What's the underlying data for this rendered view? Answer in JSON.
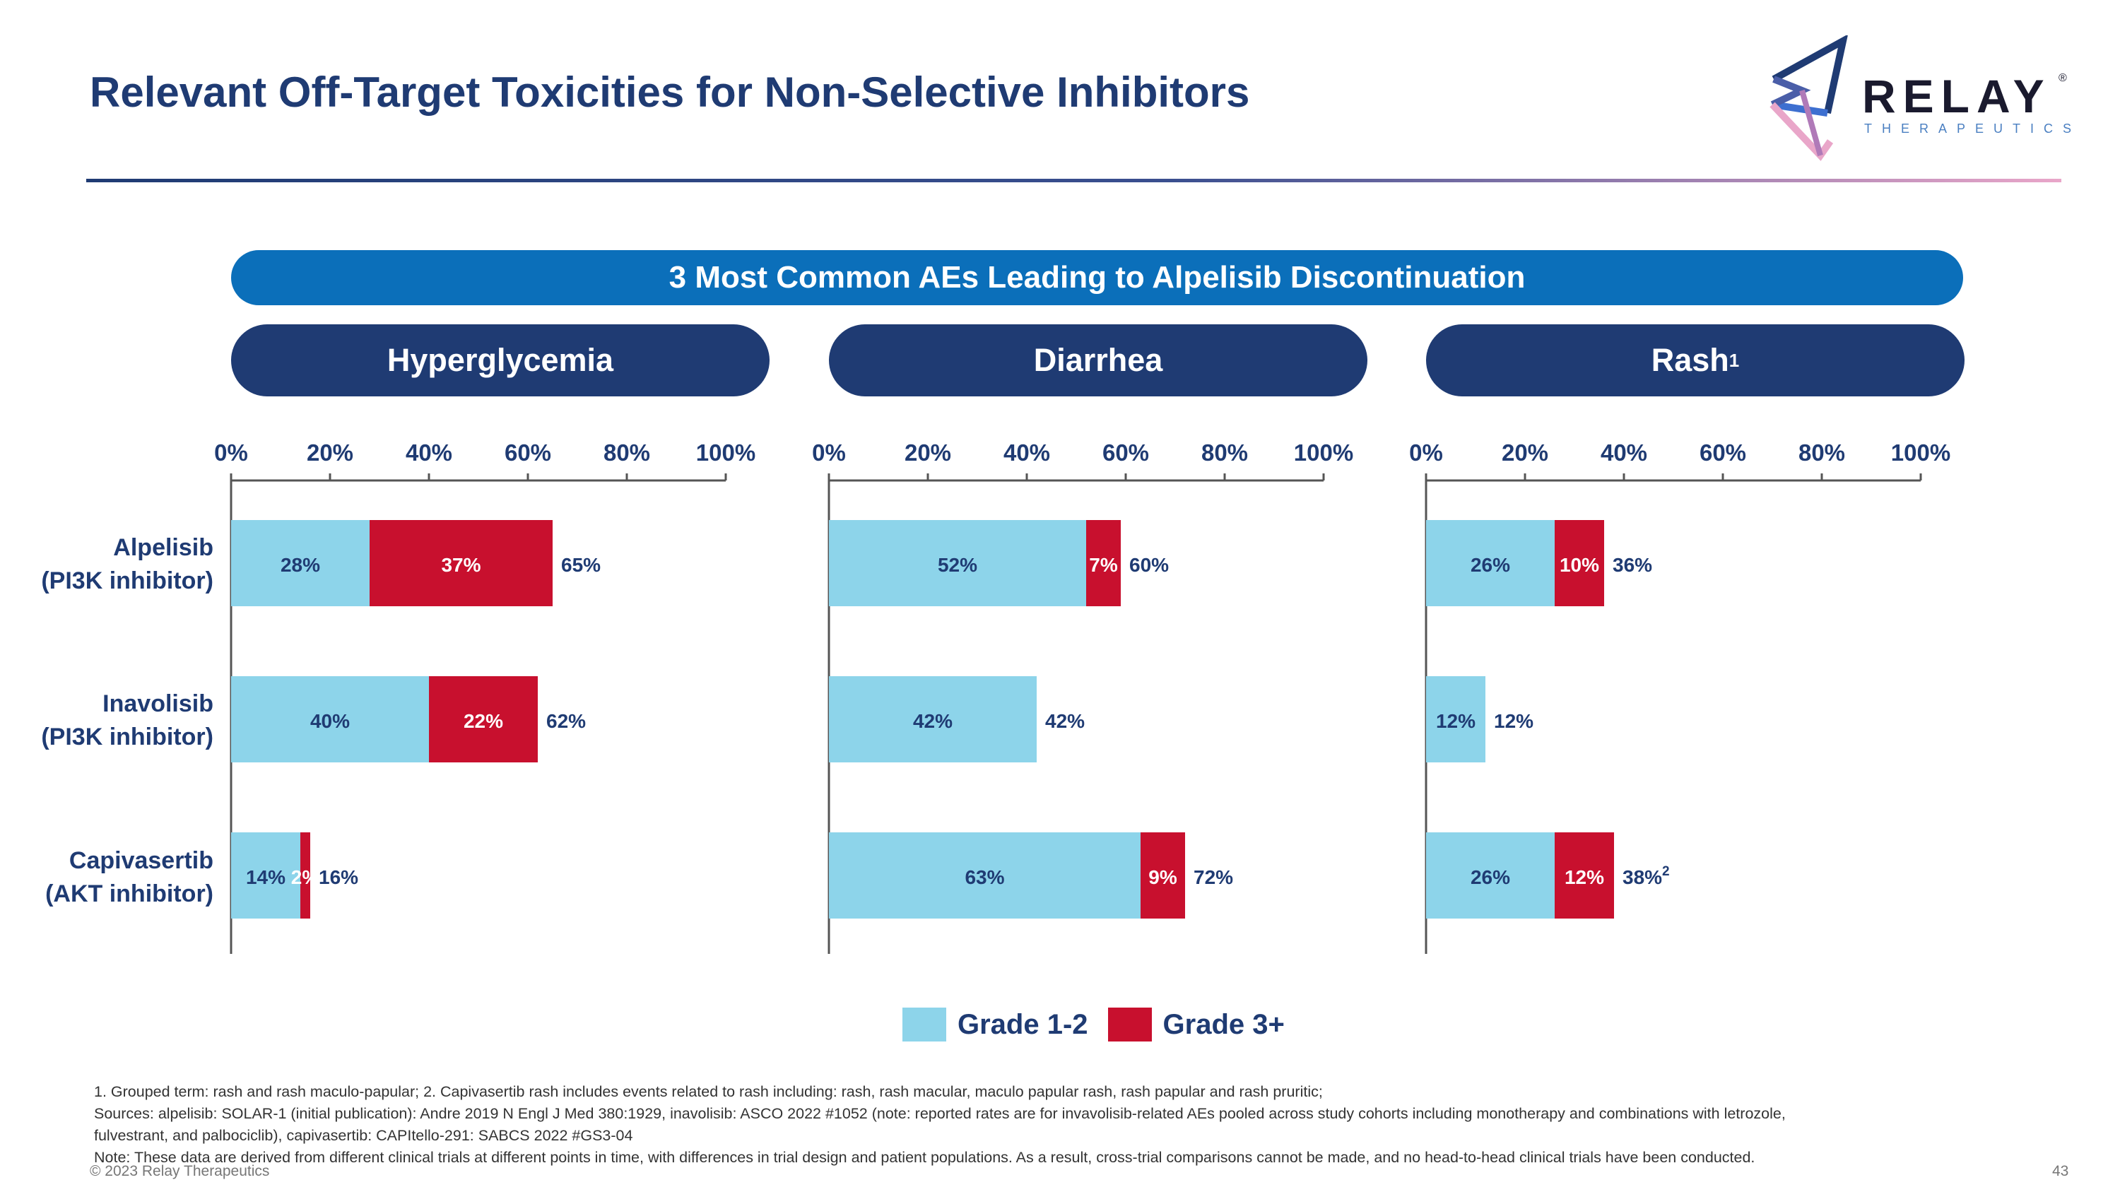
{
  "slide": {
    "title": "Relevant Off-Target Toxicities for Non-Selective Inhibitors",
    "banner": "3 Most Common AEs Leading to Alpelisib Discontinuation",
    "page_number": "43",
    "copyright": "© 2023 Relay Therapeutics"
  },
  "logo": {
    "wordmark": "RELAY",
    "registered": "®",
    "subtitle": "THERAPEUTICS",
    "colors": [
      "#1f3b73",
      "#3d6fd0",
      "#e9a6c9"
    ]
  },
  "panels": [
    {
      "title": "Hyperglycemia",
      "sup": ""
    },
    {
      "title": "Diarrhea",
      "sup": ""
    },
    {
      "title": "Rash",
      "sup": "1"
    }
  ],
  "row_labels": [
    {
      "line1": "Alpelisib",
      "line2": "(PI3K inhibitor)"
    },
    {
      "line1": "Inavolisib",
      "line2": "(PI3K inhibitor)"
    },
    {
      "line1": "Capivasertib",
      "line2": "(AKT inhibitor)"
    }
  ],
  "legend": [
    {
      "label": "Grade 1-2",
      "color": "#8dd4ea"
    },
    {
      "label": "Grade 3+",
      "color": "#c8102e"
    }
  ],
  "chart_data": {
    "type": "bar",
    "orientation": "horizontal",
    "stacked": true,
    "categories": [
      "Alpelisib (PI3K inhibitor)",
      "Inavolisib (PI3K inhibitor)",
      "Capivasertib (AKT inhibitor)"
    ],
    "xlim": [
      0,
      100
    ],
    "ticks": [
      "0%",
      "20%",
      "40%",
      "60%",
      "80%",
      "100%"
    ],
    "tick_values": [
      0,
      20,
      40,
      60,
      80,
      100
    ],
    "series_names": [
      "Grade 1-2",
      "Grade 3+"
    ],
    "series_colors": [
      "#8dd4ea",
      "#c8102e"
    ],
    "panels": [
      {
        "name": "Hyperglycemia",
        "grade12": [
          28,
          40,
          14
        ],
        "grade3": [
          37,
          22,
          2
        ],
        "grade12_labels": [
          "28%",
          "40%",
          "14%"
        ],
        "grade3_labels": [
          "37%",
          "22%",
          "2%"
        ],
        "totals": [
          "65%",
          "62%",
          "16%"
        ],
        "total_sups": [
          "",
          "",
          ""
        ]
      },
      {
        "name": "Diarrhea",
        "grade12": [
          52,
          42,
          63
        ],
        "grade3": [
          7,
          0,
          9
        ],
        "grade12_labels": [
          "52%",
          "42%",
          "63%"
        ],
        "grade3_labels": [
          "7%",
          "",
          "9%"
        ],
        "totals": [
          "60%",
          "42%",
          "72%"
        ],
        "total_sups": [
          "",
          "",
          ""
        ]
      },
      {
        "name": "Rash",
        "grade12": [
          26,
          12,
          26
        ],
        "grade3": [
          10,
          0,
          12
        ],
        "grade12_labels": [
          "26%",
          "12%",
          "26%"
        ],
        "grade3_labels": [
          "10%",
          "",
          "12%"
        ],
        "totals": [
          "36%",
          "12%",
          "38%"
        ],
        "total_sups": [
          "",
          "",
          "2"
        ]
      }
    ]
  },
  "footnotes": [
    "1. Grouped term: rash and rash maculo-papular;  2. Capivasertib rash includes events related to rash including: rash, rash macular, maculo papular rash, rash papular and rash pruritic;",
    "Sources: alpelisib: SOLAR-1 (initial publication): Andre 2019 N Engl J Med 380:1929, inavolisib: ASCO 2022 #1052 (note: reported rates are for invavolisib-related AEs pooled across study cohorts including monotherapy and combinations with letrozole,",
    "fulvestrant, and palbociclib), capivasertib: CAPItello-291: SABCS 2022 #GS3-04",
    "Note: These data are derived from different clinical trials at different points in time, with differences in trial design and patient populations. As a result, cross-trial comparisons cannot be made, and no head-to-head clinical trials have been conducted."
  ]
}
